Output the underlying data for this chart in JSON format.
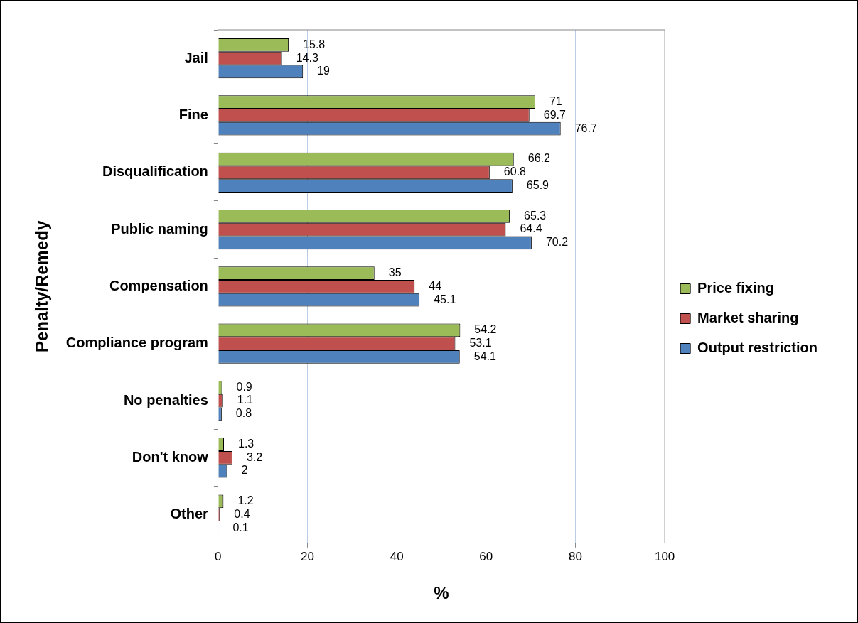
{
  "chart_data": {
    "type": "bar",
    "orientation": "horizontal",
    "xlabel": "%",
    "ylabel": "Penalty/Remedy",
    "categories": [
      "Jail",
      "Fine",
      "Disqualification",
      "Public naming",
      "Compensation",
      "Compliance program",
      "No penalties",
      "Don't know",
      "Other"
    ],
    "series": [
      {
        "name": "Price fixing",
        "color": "#9bbb59",
        "values": [
          15.8,
          71,
          66.2,
          65.3,
          35,
          54.2,
          0.9,
          1.3,
          1.2
        ]
      },
      {
        "name": "Market sharing",
        "color": "#c0504d",
        "values": [
          14.3,
          69.7,
          60.8,
          64.4,
          44,
          53.1,
          1.1,
          3.2,
          0.4
        ]
      },
      {
        "name": "Output restriction",
        "color": "#4f81bd",
        "values": [
          19,
          76.7,
          65.9,
          70.2,
          45.1,
          54.1,
          0.8,
          2,
          0.1
        ]
      }
    ],
    "xlim": [
      0,
      100
    ],
    "xticks": [
      0,
      20,
      40,
      60,
      80,
      100
    ],
    "grid": "x",
    "legend": "right",
    "data_labels": true
  }
}
